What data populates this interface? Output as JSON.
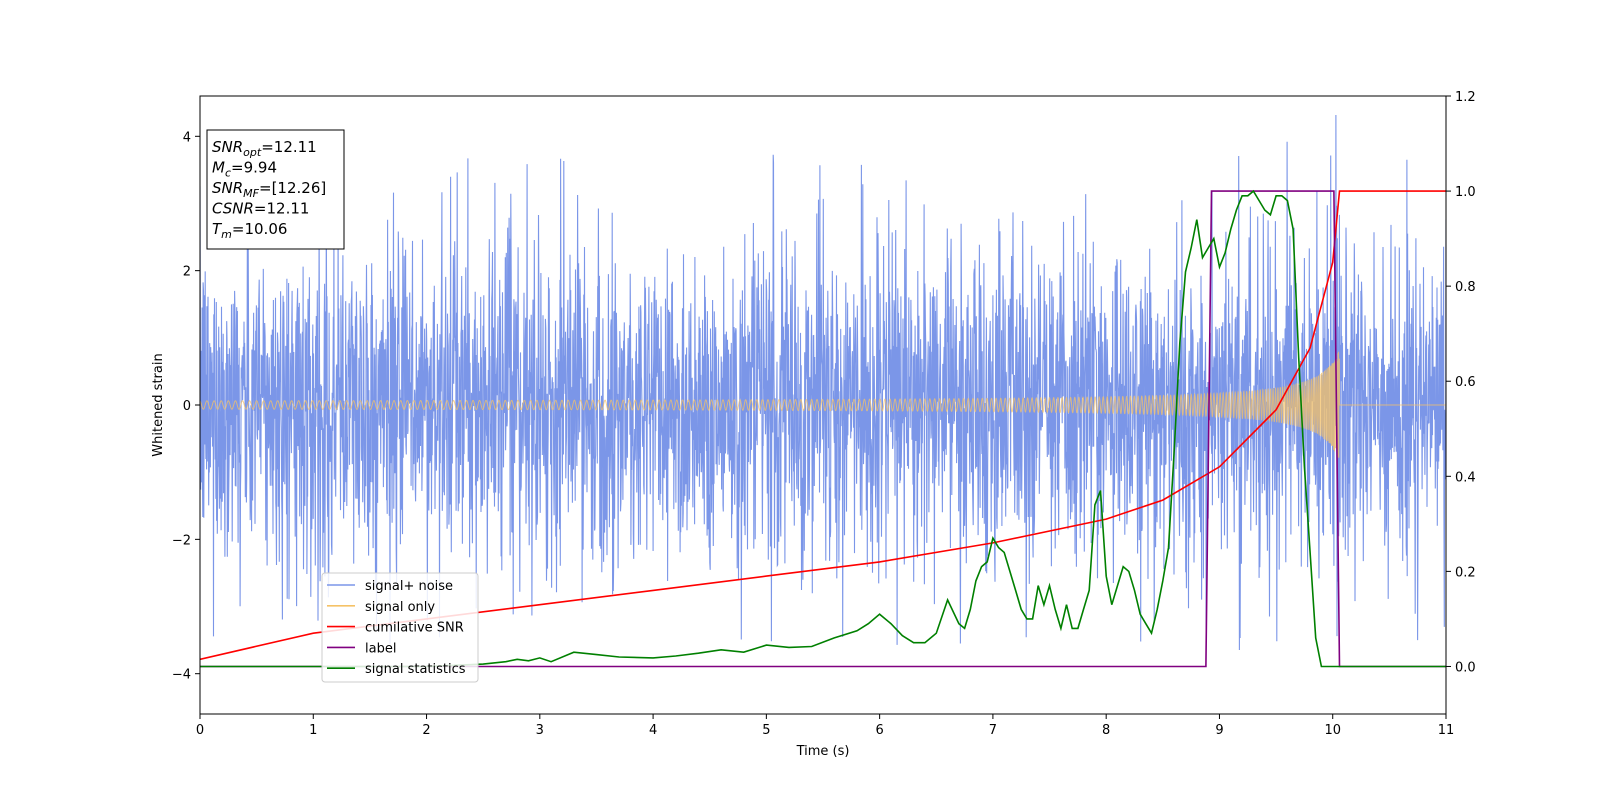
{
  "chart_data": {
    "type": "line",
    "xlabel": "Time (s)",
    "ylabel": "Whitened strain",
    "xlim": [
      0,
      11
    ],
    "ylim": [
      -4.6,
      4.6
    ],
    "y2lim": [
      -0.1,
      1.2
    ],
    "xticks": [
      "0",
      "1",
      "2",
      "3",
      "4",
      "5",
      "6",
      "7",
      "8",
      "9",
      "10",
      "11"
    ],
    "yticks": [
      "−4",
      "−2",
      "0",
      "2",
      "4"
    ],
    "y2ticks": [
      "0.0",
      "0.2",
      "0.4",
      "0.6",
      "0.8",
      "1.0",
      "1.2"
    ],
    "info_box": [
      {
        "main": "SNR",
        "sub": "opt",
        "value": "=12.11"
      },
      {
        "main": "M",
        "sub": "c",
        "value": "=9.94"
      },
      {
        "main": "SNR",
        "sub": "MF",
        "value": "=[12.26]"
      },
      {
        "main": "CSNR",
        "sub": "",
        "value": "=12.11"
      },
      {
        "main": "T",
        "sub": "m",
        "value": "=10.06"
      }
    ],
    "legend_position": "lower-left",
    "series": [
      {
        "name": "signal+ noise",
        "axis": "left",
        "color": "#7b96e8",
        "description": "noise band approx ±1.5 typical, peaks ±3.5",
        "envelope_typical": 1.6,
        "envelope_peak": 3.5
      },
      {
        "name": "signal only",
        "axis": "left",
        "color": "#f5c267",
        "chirp_end": 10.06,
        "amplitude_start": 0.04,
        "amplitude_end": 0.85
      },
      {
        "name": "cumilative SNR",
        "axis": "right",
        "color": "#ff0000",
        "x": [
          0,
          1,
          2,
          3,
          4,
          5,
          6,
          7,
          8,
          8.5,
          9,
          9.5,
          9.8,
          10,
          10.06,
          11
        ],
        "y": [
          0.015,
          0.07,
          0.1,
          0.13,
          0.16,
          0.19,
          0.22,
          0.26,
          0.31,
          0.35,
          0.42,
          0.54,
          0.67,
          0.85,
          1.0,
          1.0
        ]
      },
      {
        "name": "label",
        "axis": "right",
        "color": "#800080",
        "x": [
          0,
          8.88,
          8.93,
          10.01,
          10.06,
          11
        ],
        "y": [
          0,
          0,
          1,
          1,
          0,
          0
        ]
      },
      {
        "name": "signal statistics",
        "axis": "right",
        "color": "#008000",
        "x": [
          0,
          1,
          2,
          2.5,
          2.7,
          2.8,
          2.9,
          3.0,
          3.1,
          3.3,
          3.5,
          3.7,
          4.0,
          4.2,
          4.4,
          4.6,
          4.8,
          5.0,
          5.2,
          5.4,
          5.6,
          5.8,
          5.9,
          6.0,
          6.1,
          6.2,
          6.3,
          6.4,
          6.5,
          6.6,
          6.7,
          6.75,
          6.8,
          6.85,
          6.9,
          6.95,
          7.0,
          7.05,
          7.1,
          7.15,
          7.2,
          7.25,
          7.3,
          7.35,
          7.4,
          7.45,
          7.5,
          7.55,
          7.6,
          7.65,
          7.7,
          7.75,
          7.8,
          7.85,
          7.9,
          7.95,
          8.0,
          8.05,
          8.1,
          8.15,
          8.2,
          8.25,
          8.3,
          8.35,
          8.4,
          8.45,
          8.5,
          8.55,
          8.6,
          8.65,
          8.7,
          8.75,
          8.8,
          8.85,
          8.9,
          8.95,
          9.0,
          9.05,
          9.1,
          9.15,
          9.2,
          9.25,
          9.3,
          9.35,
          9.4,
          9.45,
          9.5,
          9.55,
          9.6,
          9.65,
          9.7,
          9.75,
          9.8,
          9.85,
          9.9,
          9.95,
          10.0,
          10.05,
          10.1,
          10.2,
          11
        ],
        "y": [
          0.0,
          0.0,
          0.0,
          0.005,
          0.01,
          0.015,
          0.012,
          0.018,
          0.01,
          0.03,
          0.025,
          0.02,
          0.018,
          0.022,
          0.028,
          0.035,
          0.03,
          0.045,
          0.04,
          0.042,
          0.06,
          0.075,
          0.09,
          0.11,
          0.09,
          0.065,
          0.05,
          0.05,
          0.07,
          0.14,
          0.09,
          0.08,
          0.12,
          0.18,
          0.21,
          0.22,
          0.27,
          0.25,
          0.24,
          0.2,
          0.16,
          0.12,
          0.1,
          0.1,
          0.17,
          0.13,
          0.17,
          0.12,
          0.08,
          0.13,
          0.08,
          0.08,
          0.12,
          0.16,
          0.34,
          0.37,
          0.19,
          0.13,
          0.17,
          0.21,
          0.2,
          0.16,
          0.11,
          0.09,
          0.07,
          0.12,
          0.18,
          0.25,
          0.45,
          0.68,
          0.83,
          0.88,
          0.94,
          0.86,
          0.88,
          0.9,
          0.84,
          0.87,
          0.92,
          0.96,
          0.99,
          0.99,
          1.0,
          0.98,
          0.96,
          0.95,
          0.99,
          0.99,
          0.98,
          0.92,
          0.65,
          0.42,
          0.24,
          0.06,
          0.0,
          0.0,
          0.0,
          0.0,
          0.0,
          0.0,
          0.0
        ]
      }
    ]
  }
}
